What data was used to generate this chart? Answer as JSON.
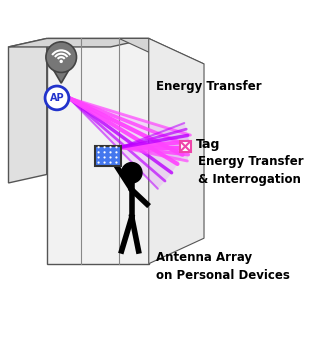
{
  "bg_color": "#ffffff",
  "ap_circle_color": "#2233cc",
  "ap_text": "AP",
  "beam_color": "#cc22ff",
  "beam_color2": "#dd44ff",
  "tag_color": "#ee44aa",
  "person_color": "#111111",
  "device_color": "#4477ee",
  "label_energy_transfer": "Energy Transfer",
  "label_tag": "Tag",
  "label_energy_transfer2": "Energy Transfer\n& Interrogation",
  "label_antenna": "Antenna Array\non Personal Devices",
  "figsize": [
    3.09,
    3.54
  ],
  "dpi": 100,
  "wall_face_color": "#f2f2f2",
  "wall_side_color": "#e0e0e0",
  "wall_top_color": "#d5d5d5",
  "wall_edge_color": "#555555"
}
